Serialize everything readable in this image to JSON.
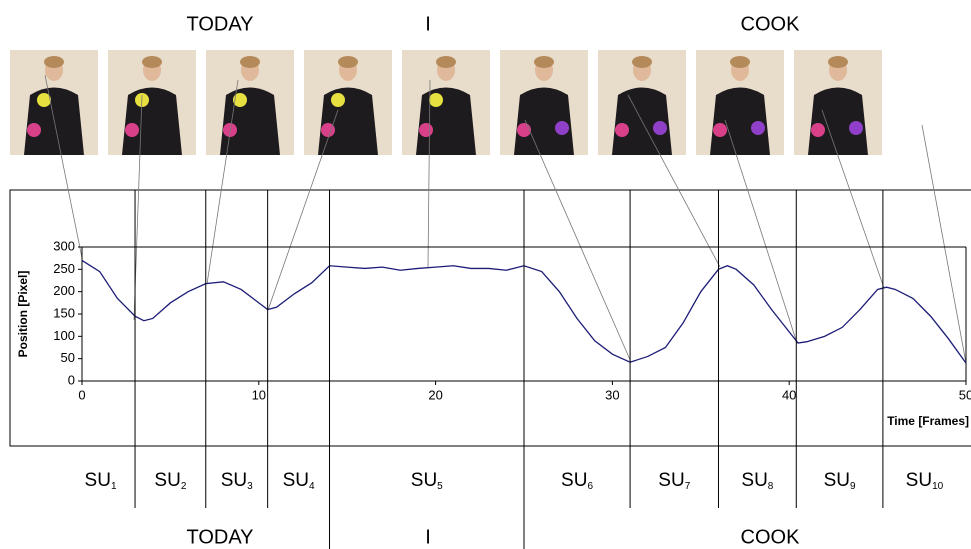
{
  "chart_data": {
    "type": "line",
    "top_words": [
      "TODAY",
      "I",
      "COOK"
    ],
    "bottom_words": [
      "TODAY",
      "I",
      "COOK"
    ],
    "y_label": "Position [Pixel]",
    "x_label": "Time [Frames]",
    "xlim": [
      0,
      50
    ],
    "xticks": [
      0,
      10,
      20,
      30,
      40,
      50
    ],
    "ylim": [
      0,
      300
    ],
    "yticks": [
      0,
      50,
      100,
      150,
      200,
      250,
      300
    ],
    "color": "#1c1c78",
    "x": [
      0,
      1,
      2,
      3,
      3.5,
      4,
      5,
      6,
      7,
      8,
      9,
      10,
      10.5,
      11,
      12,
      13,
      14,
      15,
      16,
      17,
      18,
      19,
      20,
      21,
      22,
      23,
      24,
      25,
      26,
      27,
      28,
      29,
      30,
      31,
      32,
      33,
      34,
      35,
      36,
      36.5,
      37,
      38,
      39,
      40,
      40.5,
      41,
      42,
      43,
      44,
      45,
      45.5,
      46,
      47,
      48,
      49,
      50
    ],
    "values": [
      270,
      245,
      185,
      145,
      135,
      140,
      175,
      200,
      218,
      222,
      205,
      175,
      160,
      165,
      195,
      220,
      258,
      255,
      252,
      255,
      248,
      252,
      255,
      258,
      252,
      252,
      248,
      258,
      245,
      200,
      140,
      90,
      60,
      42,
      55,
      75,
      130,
      200,
      250,
      258,
      250,
      215,
      160,
      110,
      85,
      88,
      100,
      120,
      160,
      205,
      210,
      205,
      185,
      145,
      95,
      40
    ],
    "boundaries": [
      3,
      7,
      10.5,
      14,
      25,
      31,
      36,
      40.4,
      45.3
    ],
    "segments": [
      {
        "base": "SU",
        "index": "1"
      },
      {
        "base": "SU",
        "index": "2"
      },
      {
        "base": "SU",
        "index": "3"
      },
      {
        "base": "SU",
        "index": "4"
      },
      {
        "base": "SU",
        "index": "5"
      },
      {
        "base": "SU",
        "index": "6"
      },
      {
        "base": "SU",
        "index": "7"
      },
      {
        "base": "SU",
        "index": "8"
      },
      {
        "base": "SU",
        "index": "9"
      },
      {
        "base": "SU",
        "index": "10"
      }
    ]
  }
}
